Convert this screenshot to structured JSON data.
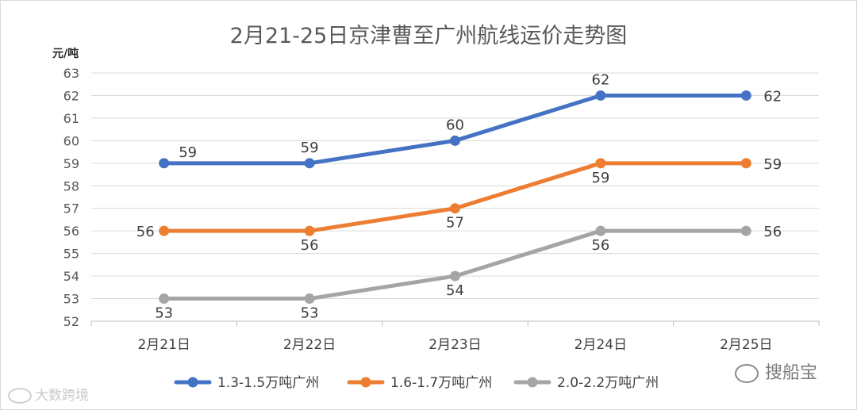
{
  "chart_data": {
    "type": "line",
    "title": "2月21-25日京津曹至广州航线运价走势图",
    "ylabel": "元/吨",
    "xlabel": "",
    "categories": [
      "2月21日",
      "2月22日",
      "2月23日",
      "2月24日",
      "2月25日"
    ],
    "ylim": [
      52,
      63
    ],
    "yticks": [
      52,
      53,
      54,
      55,
      56,
      57,
      58,
      59,
      60,
      61,
      62,
      63
    ],
    "grid": true,
    "legend_position": "bottom",
    "series": [
      {
        "name": "1.3-1.5万吨广州",
        "color": "#4472C4",
        "values": [
          59,
          59,
          60,
          62,
          62
        ],
        "label_pos": [
          "above",
          "above",
          "above",
          "above",
          "right"
        ]
      },
      {
        "name": "1.6-1.7万吨广州",
        "color": "#ED7D31",
        "values": [
          56,
          56,
          57,
          59,
          59
        ],
        "label_pos": [
          "left",
          "below",
          "below",
          "below",
          "right"
        ]
      },
      {
        "name": "2.0-2.2万吨广州",
        "color": "#A5A5A5",
        "values": [
          53,
          53,
          54,
          56,
          56
        ],
        "label_pos": [
          "below",
          "below",
          "below",
          "below",
          "right"
        ]
      }
    ]
  },
  "watermarks": {
    "left": "大数跨境",
    "right": "搜船宝"
  }
}
